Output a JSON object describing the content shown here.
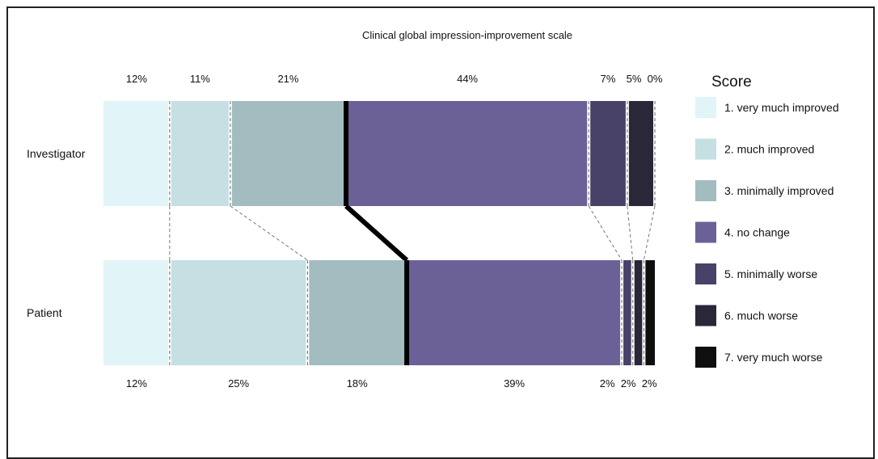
{
  "chart_data": {
    "type": "bar",
    "subtype": "stacked-horizontal-100-percent",
    "title": "Clinical global impression-improvement scale",
    "categories": [
      "Investigator",
      "Patient"
    ],
    "series": [
      {
        "name": "1. very much improved",
        "values": [
          12,
          12
        ],
        "color": "#e1f4f8"
      },
      {
        "name": "2. much improved",
        "values": [
          11,
          25
        ],
        "color": "#c5dfe2"
      },
      {
        "name": "3. minimally improved",
        "values": [
          21,
          18
        ],
        "color": "#a2bcc0"
      },
      {
        "name": "4. no change",
        "values": [
          44,
          39
        ],
        "color": "#6c6197"
      },
      {
        "name": "5. minimally worse",
        "values": [
          7,
          2
        ],
        "color": "#484168"
      },
      {
        "name": "6. much worse",
        "values": [
          5,
          2
        ],
        "color": "#2a2739"
      },
      {
        "name": "7. very much worse",
        "values": [
          0,
          2
        ],
        "color": "#0f0f0f"
      }
    ],
    "top_labels": [
      "12%",
      "11%",
      "21%",
      "44%",
      "7%",
      "5%",
      "0%"
    ],
    "bottom_labels": [
      "12%",
      "25%",
      "18%",
      "39%",
      "2%",
      "2%",
      "2%"
    ],
    "legend_title": "Score",
    "legend_position": "right",
    "grid": false,
    "xlim": [
      0,
      100
    ]
  }
}
